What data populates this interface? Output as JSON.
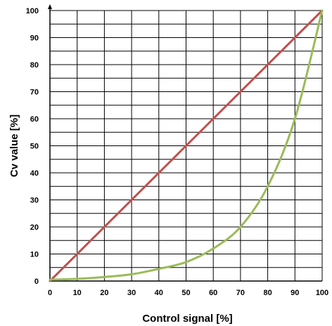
{
  "chart_data": {
    "type": "line",
    "title": "",
    "xlabel": "Control signal [%]",
    "ylabel": "Cv value [%]",
    "xlim": [
      0,
      100
    ],
    "ylim": [
      0,
      100
    ],
    "x_ticks": [
      "0",
      "10",
      "20",
      "30",
      "40",
      "50",
      "60",
      "70",
      "80",
      "90",
      "100"
    ],
    "y_ticks": [
      "0",
      "10",
      "20",
      "30",
      "40",
      "50",
      "60",
      "70",
      "80",
      "90",
      "100"
    ],
    "grid": true,
    "legend": "none",
    "series": [
      {
        "color": "#c0504d",
        "x": [
          0,
          100
        ],
        "y": [
          0,
          100
        ]
      },
      {
        "color": "#9bbb59",
        "x": [
          0,
          10,
          20,
          30,
          40,
          50,
          60,
          70,
          80,
          90,
          100
        ],
        "y": [
          0.5,
          0.8,
          1.5,
          2.5,
          4.5,
          7,
          12,
          20,
          35,
          60,
          100
        ]
      }
    ]
  }
}
